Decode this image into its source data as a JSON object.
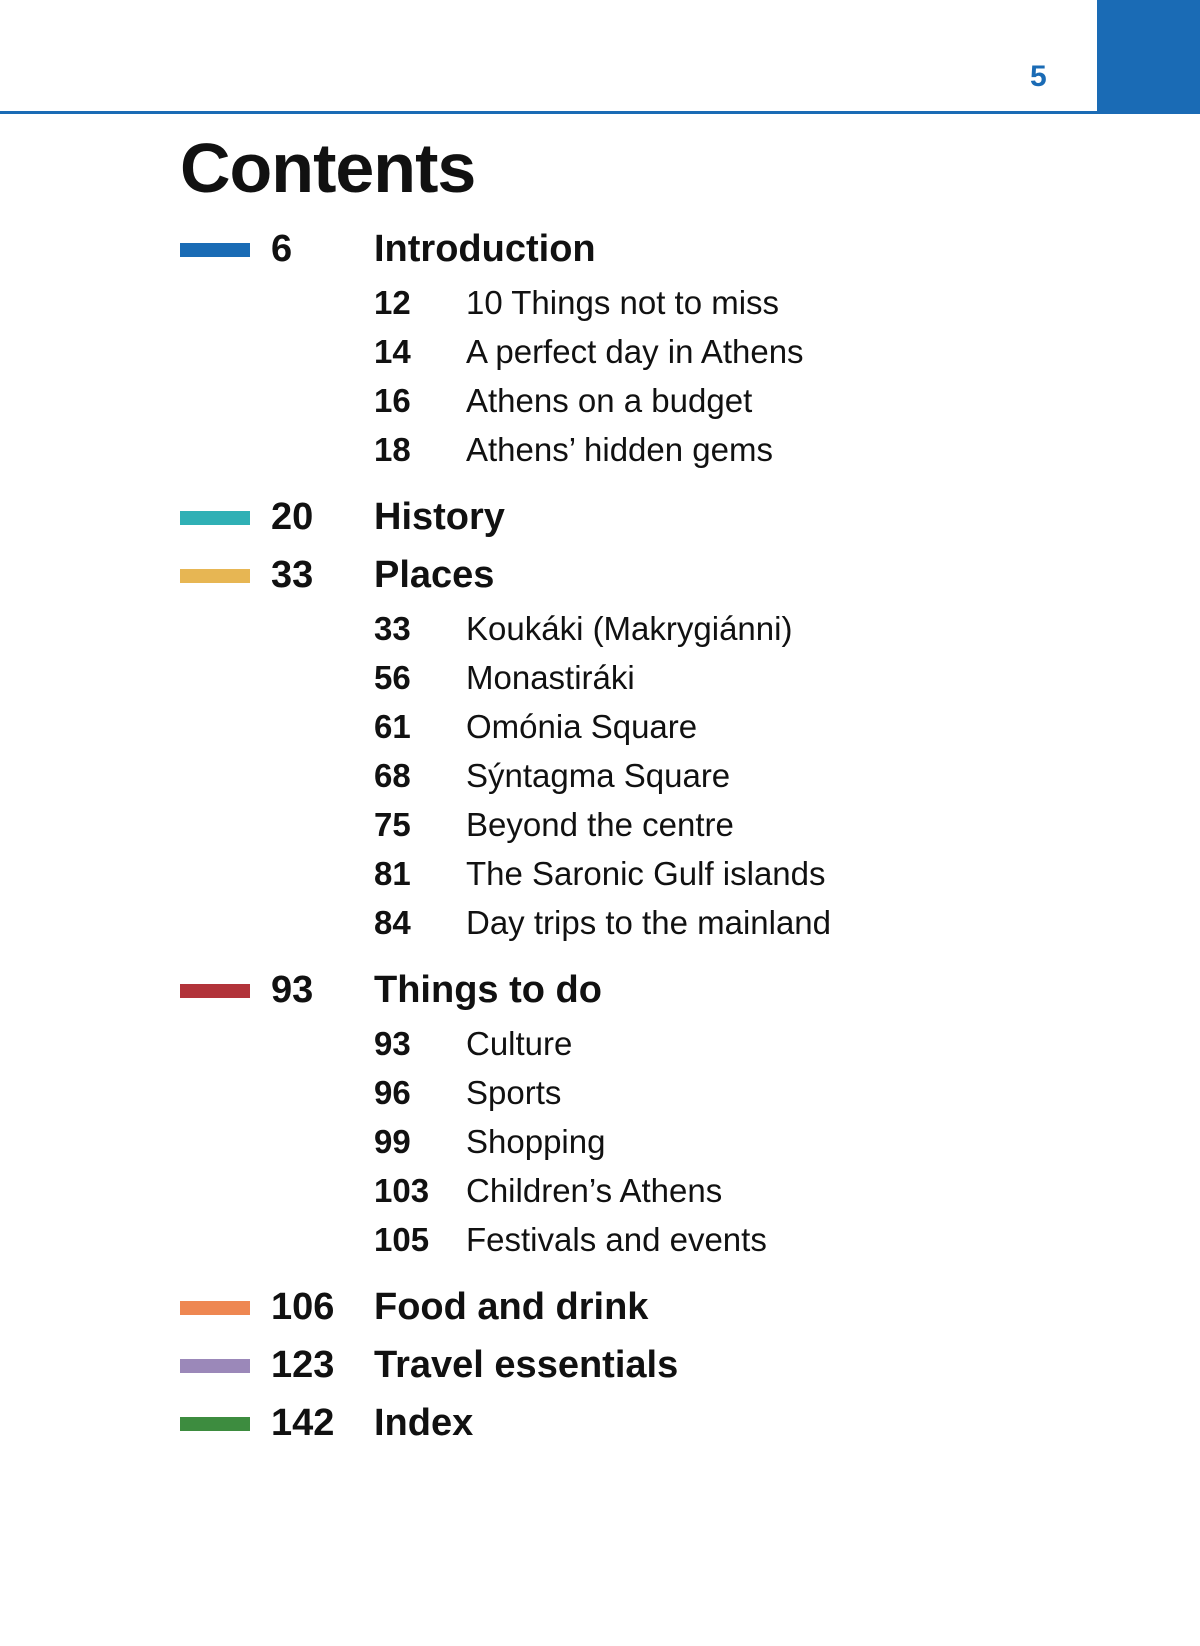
{
  "header": {
    "page_number": 5
  },
  "title": "Contents",
  "sections": [
    {
      "page": 6,
      "title": "Introduction",
      "items": [
        {
          "page": 12,
          "title": "10 Things not to miss"
        },
        {
          "page": 14,
          "title": "A perfect day in Athens"
        },
        {
          "page": 16,
          "title": "Athens on a budget"
        },
        {
          "page": 18,
          "title": "Athens’ hidden gems"
        }
      ]
    },
    {
      "page": 20,
      "title": "History"
    },
    {
      "page": 33,
      "title": "Places",
      "items": [
        {
          "page": 33,
          "title": "Koukáki (Makrygiánni)"
        },
        {
          "page": 56,
          "title": "Monastiráki"
        },
        {
          "page": 61,
          "title": "Omónia Square"
        },
        {
          "page": 68,
          "title": "Sýntagma Square"
        },
        {
          "page": 75,
          "title": "Beyond the centre"
        },
        {
          "page": 81,
          "title": "The Saronic Gulf islands"
        },
        {
          "page": 84,
          "title": "Day trips to the mainland"
        }
      ]
    },
    {
      "page": 93,
      "title": "Things to do",
      "items": [
        {
          "page": 93,
          "title": "Culture"
        },
        {
          "page": 96,
          "title": "Sports"
        },
        {
          "page": 99,
          "title": "Shopping"
        },
        {
          "page": 103,
          "title": "Children’s Athens"
        },
        {
          "page": 105,
          "title": "Festivals and events"
        }
      ]
    },
    {
      "page": 106,
      "title": "Food and drink"
    },
    {
      "page": 123,
      "title": "Travel essentials"
    },
    {
      "page": 142,
      "title": "Index"
    }
  ]
}
